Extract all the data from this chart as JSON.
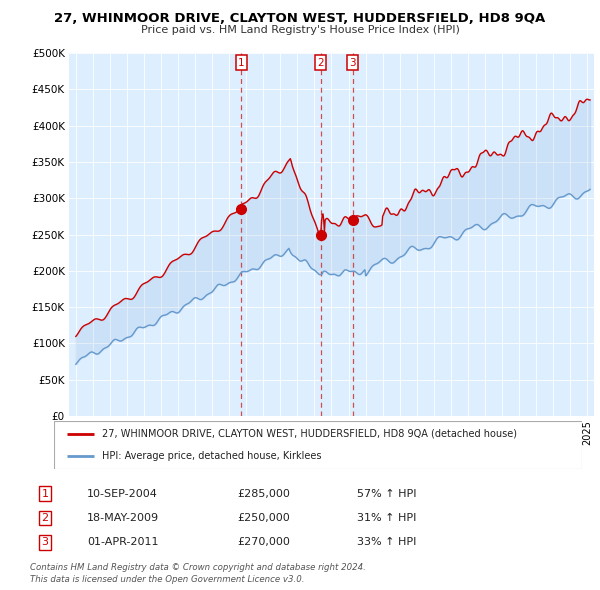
{
  "title": "27, WHINMOOR DRIVE, CLAYTON WEST, HUDDERSFIELD, HD8 9QA",
  "subtitle": "Price paid vs. HM Land Registry's House Price Index (HPI)",
  "ylim": [
    0,
    500000
  ],
  "yticks": [
    0,
    50000,
    100000,
    150000,
    200000,
    250000,
    300000,
    350000,
    400000,
    450000,
    500000
  ],
  "ytick_labels": [
    "£0",
    "£50K",
    "£100K",
    "£150K",
    "£200K",
    "£250K",
    "£300K",
    "£350K",
    "£400K",
    "£450K",
    "£500K"
  ],
  "xlim_start": 1994.6,
  "xlim_end": 2025.4,
  "bg_color": "#ffffff",
  "plot_bg_color": "#ddeeff",
  "grid_color": "#ffffff",
  "red_color": "#cc0000",
  "blue_color": "#6699cc",
  "vline_color": "#cc3333",
  "transactions": [
    {
      "year": 2004.7,
      "price": 285000,
      "label": "1",
      "date": "10-SEP-2004",
      "price_str": "£285,000",
      "pct": "57% ↑ HPI"
    },
    {
      "year": 2009.37,
      "price": 250000,
      "label": "2",
      "date": "18-MAY-2009",
      "price_str": "£250,000",
      "pct": "31% ↑ HPI"
    },
    {
      "year": 2011.25,
      "price": 270000,
      "label": "3",
      "date": "01-APR-2011",
      "price_str": "£270,000",
      "pct": "33% ↑ HPI"
    }
  ],
  "legend_property": "27, WHINMOOR DRIVE, CLAYTON WEST, HUDDERSFIELD, HD8 9QA (detached house)",
  "legend_hpi": "HPI: Average price, detached house, Kirklees",
  "footer1": "Contains HM Land Registry data © Crown copyright and database right 2024.",
  "footer2": "This data is licensed under the Open Government Licence v3.0."
}
